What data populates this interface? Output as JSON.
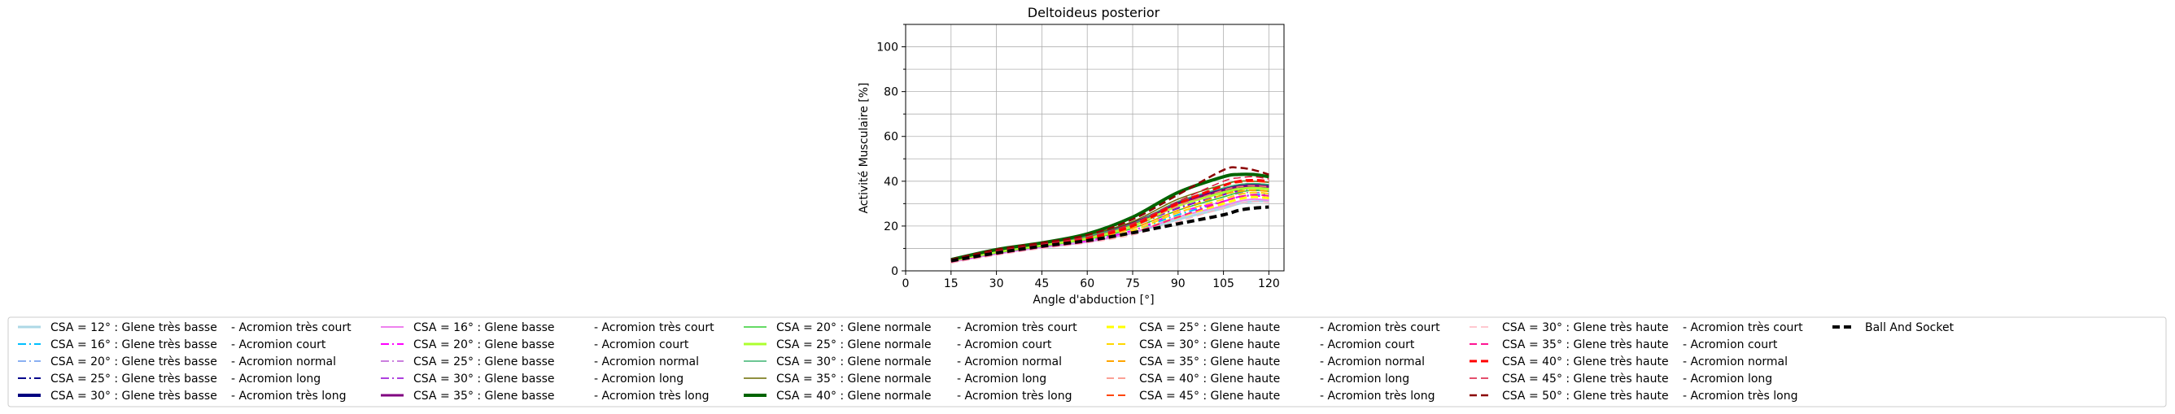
{
  "chart_data": {
    "type": "line",
    "title": "Deltoideus posterior",
    "xlabel": "Angle d'abduction [°]",
    "ylabel": "Activité Musculaire [%]",
    "xlim": [
      0,
      125
    ],
    "ylim": [
      0,
      110
    ],
    "xticks": [
      0,
      15,
      30,
      45,
      60,
      75,
      90,
      105,
      120
    ],
    "yticks": [
      0,
      20,
      40,
      60,
      80,
      100
    ],
    "grid": true,
    "legend_position": "bottom",
    "x": [
      15,
      30,
      45,
      60,
      75,
      90,
      105,
      110,
      115,
      120
    ],
    "series": [
      {
        "name": "CSA = 12° : Glene très basse",
        "suffix": "-  Acromion très court",
        "color": "#add8e6",
        "dash": "solid",
        "width": 3,
        "values": [
          4,
          8,
          10.5,
          13,
          17,
          23,
          28,
          30,
          31,
          31
        ]
      },
      {
        "name": "CSA = 16° : Glene très basse",
        "suffix": "-  Acromion court",
        "color": "#00bfff",
        "dash": "dashdot",
        "width": 2,
        "values": [
          4,
          8,
          11,
          13.5,
          18,
          25,
          31,
          33,
          34,
          34
        ]
      },
      {
        "name": "CSA = 20° : Glene très basse",
        "suffix": "-  Acromion normal",
        "color": "#6495ed",
        "dash": "dashdot",
        "width": 1.5,
        "values": [
          4.5,
          8,
          11,
          14,
          19,
          27,
          33,
          35,
          36,
          35.5
        ]
      },
      {
        "name": "CSA = 25° : Glene très basse",
        "suffix": "-  Acromion long",
        "color": "#00008b",
        "dash": "dashdot",
        "width": 2,
        "values": [
          4.5,
          8.5,
          11.5,
          14.5,
          20,
          28,
          34,
          36,
          37,
          36.5
        ]
      },
      {
        "name": "CSA = 30° : Glene très basse",
        "suffix": "-  Acromion très long",
        "color": "#000080",
        "dash": "solid",
        "width": 4,
        "values": [
          5,
          9,
          12,
          15,
          21,
          30,
          36,
          38,
          38.5,
          38
        ]
      },
      {
        "name": "CSA = 16° : Glene basse",
        "suffix": "-  Acromion très court",
        "color": "#ee82ee",
        "dash": "solid",
        "width": 2,
        "values": [
          4,
          7.5,
          10.5,
          13,
          17,
          24,
          29,
          31,
          32,
          31.5
        ]
      },
      {
        "name": "CSA = 20° : Glene basse",
        "suffix": "-  Acromion court",
        "color": "#ff00ff",
        "dash": "dashdot",
        "width": 2,
        "values": [
          4,
          8,
          11,
          13.5,
          18,
          26,
          31,
          33,
          33.5,
          33
        ]
      },
      {
        "name": "CSA = 25° : Glene basse",
        "suffix": "-  Acromion normal",
        "color": "#ba55d3",
        "dash": "dashdot",
        "width": 1.5,
        "values": [
          4.5,
          8,
          11,
          14,
          19,
          27,
          33,
          34.5,
          35,
          34.5
        ]
      },
      {
        "name": "CSA = 30° : Glene basse",
        "suffix": "-  Acromion long",
        "color": "#9400d3",
        "dash": "dashdot",
        "width": 1.5,
        "values": [
          4.5,
          8.5,
          11.5,
          14.5,
          20,
          28,
          34,
          35.5,
          36,
          35.5
        ]
      },
      {
        "name": "CSA = 35° : Glene basse",
        "suffix": "-  Acromion très long",
        "color": "#800080",
        "dash": "solid",
        "width": 3,
        "values": [
          5,
          9,
          12,
          15,
          21,
          30,
          36,
          37.5,
          38,
          37.5
        ]
      },
      {
        "name": "CSA = 20° : Glene normale",
        "suffix": "-  Acromion très court",
        "color": "#32cd32",
        "dash": "solid",
        "width": 1.5,
        "values": [
          4.5,
          8,
          11,
          14,
          19,
          27,
          33,
          35,
          36,
          35.5
        ]
      },
      {
        "name": "CSA = 25° : Glene normale",
        "suffix": "-  Acromion court",
        "color": "#adff2f",
        "dash": "solid",
        "width": 3,
        "values": [
          4.5,
          8.5,
          11.5,
          14.5,
          20,
          29,
          35,
          36.5,
          37,
          36.5
        ]
      },
      {
        "name": "CSA = 30° : Glene normale",
        "suffix": "-  Acromion normal",
        "color": "#3cb371",
        "dash": "solid",
        "width": 1.5,
        "values": [
          5,
          9,
          12,
          15.5,
          21,
          31,
          37,
          38.5,
          39,
          38.5
        ]
      },
      {
        "name": "CSA = 35° : Glene normale",
        "suffix": "-  Acromion long",
        "color": "#6b6b00",
        "dash": "solid",
        "width": 1.5,
        "values": [
          5,
          9.5,
          12.5,
          16,
          22,
          32,
          38.5,
          40,
          40,
          39.5
        ]
      },
      {
        "name": "CSA = 40° : Glene normale",
        "suffix": "-  Acromion très long",
        "color": "#006400",
        "dash": "solid",
        "width": 4,
        "values": [
          5,
          9.5,
          12.5,
          16.5,
          24,
          35,
          42,
          43,
          43,
          42
        ]
      },
      {
        "name": "CSA = 25° : Glene haute",
        "suffix": "-  Acromion très court",
        "color": "#ffff00",
        "dash": "dashed",
        "width": 3,
        "values": [
          4,
          7.5,
          10.5,
          13,
          17,
          24,
          30,
          32,
          33,
          32.5
        ]
      },
      {
        "name": "CSA = 30° : Glene haute",
        "suffix": "-  Acromion court",
        "color": "#ffd700",
        "dash": "dashed",
        "width": 2,
        "values": [
          4,
          8,
          11,
          13.5,
          18,
          26,
          32,
          34,
          35,
          34.5
        ]
      },
      {
        "name": "CSA = 35° : Glene haute",
        "suffix": "-  Acromion normal",
        "color": "#ffa500",
        "dash": "dashed",
        "width": 2,
        "values": [
          4,
          8,
          11,
          14,
          19,
          27,
          34,
          35.5,
          36,
          35.5
        ]
      },
      {
        "name": "CSA = 40° : Glene haute",
        "suffix": "-  Acromion long",
        "color": "#fa8072",
        "dash": "dashed",
        "width": 1.5,
        "values": [
          4.5,
          8.5,
          11.5,
          14.5,
          20,
          29,
          36,
          37.5,
          38,
          37.5
        ]
      },
      {
        "name": "CSA = 45° : Glene haute",
        "suffix": "-  Acromion très long",
        "color": "#ff4500",
        "dash": "dashed",
        "width": 2,
        "values": [
          5,
          9,
          12,
          15,
          21,
          30,
          38,
          39.5,
          40,
          39.5
        ]
      },
      {
        "name": "CSA = 30° : Glene très haute",
        "suffix": "-  Acromion très court",
        "color": "#ffb6c1",
        "dash": "dashed",
        "width": 1.5,
        "values": [
          3.5,
          7,
          10,
          12.5,
          16,
          22,
          28,
          30,
          31,
          30.5
        ]
      },
      {
        "name": "CSA = 35° : Glene très haute",
        "suffix": "-  Acromion court",
        "color": "#ff1493",
        "dash": "dashed",
        "width": 2,
        "values": [
          4,
          7.5,
          10.5,
          13,
          17,
          24,
          31,
          33,
          34,
          33.5
        ]
      },
      {
        "name": "CSA = 40° : Glene très haute",
        "suffix": "-  Acromion normal",
        "color": "#ff0000",
        "dash": "dashed",
        "width": 3,
        "values": [
          4.5,
          8.5,
          11.5,
          14.5,
          20,
          30,
          38,
          40,
          40.5,
          40
        ]
      },
      {
        "name": "CSA = 45° : Glene très haute",
        "suffix": "-  Acromion long",
        "color": "#dc143c",
        "dash": "dashed",
        "width": 1.5,
        "values": [
          5,
          9,
          12,
          15,
          21,
          31,
          40,
          41.5,
          42,
          41
        ]
      },
      {
        "name": "CSA = 50° : Glene très haute",
        "suffix": "-  Acromion très long",
        "color": "#8b0000",
        "dash": "dashed",
        "width": 2.5,
        "values": [
          5,
          9.5,
          12.5,
          16,
          23,
          34,
          45,
          46,
          45,
          43
        ]
      },
      {
        "name": "Ball And Socket",
        "suffix": "",
        "color": "#000000",
        "dash": "dashed",
        "width": 4,
        "values": [
          4.5,
          8,
          11,
          13.5,
          17,
          21,
          25,
          27,
          28,
          28.5
        ]
      }
    ]
  }
}
